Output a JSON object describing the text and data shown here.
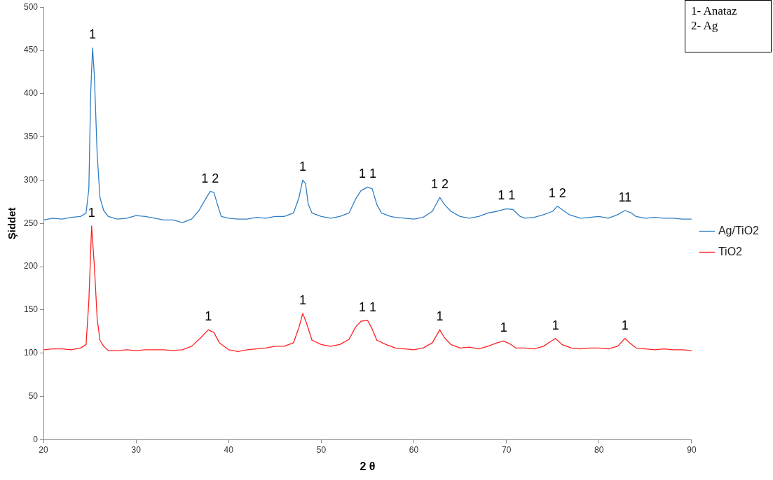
{
  "chart_data": {
    "type": "line",
    "xlabel": "2 θ",
    "ylabel": "Şiddet",
    "xlim": [
      20,
      90
    ],
    "xticks": [
      20,
      30,
      40,
      50,
      60,
      70,
      80,
      90
    ],
    "ylim": [
      0,
      500
    ],
    "yticks": [
      0,
      50,
      100,
      150,
      200,
      250,
      300,
      350,
      400,
      450,
      500
    ],
    "grid": false,
    "legend": "right",
    "marker": "none",
    "line_style": "solid",
    "series": [
      {
        "name": "Ag/TiO2",
        "color": "#2f7ec4",
        "x": [
          20,
          21,
          22,
          23,
          24,
          24.6,
          24.9,
          25.1,
          25.3,
          25.5,
          25.8,
          26.1,
          26.5,
          27,
          28,
          29,
          30,
          31,
          32,
          33,
          34,
          35,
          36,
          36.8,
          37.5,
          38,
          38.4,
          38.7,
          39.2,
          40,
          41,
          42,
          43,
          44,
          45,
          46,
          47,
          47.6,
          48,
          48.3,
          48.6,
          49,
          50,
          51,
          52,
          53,
          53.7,
          54.3,
          55,
          55.5,
          56,
          56.5,
          57.5,
          58,
          59,
          60,
          61,
          62,
          62.8,
          63.3,
          64,
          65,
          66,
          67,
          68,
          69,
          70,
          70.7,
          71.5,
          72,
          73,
          74,
          75,
          75.5,
          76,
          76.8,
          78,
          79,
          80,
          81,
          82,
          82.8,
          83.5,
          84,
          85,
          86,
          87,
          88,
          89,
          90
        ],
        "values": [
          254,
          256,
          255,
          257,
          258,
          262,
          290,
          400,
          453,
          420,
          330,
          280,
          265,
          258,
          255,
          256,
          259,
          258,
          256,
          254,
          254,
          251,
          255,
          265,
          278,
          287,
          286,
          275,
          258,
          256,
          255,
          255,
          257,
          256,
          258,
          258,
          262,
          280,
          300,
          296,
          272,
          262,
          258,
          256,
          258,
          262,
          278,
          288,
          292,
          290,
          272,
          262,
          258,
          257,
          256,
          255,
          257,
          264,
          280,
          272,
          264,
          258,
          256,
          258,
          262,
          264,
          267,
          266,
          258,
          256,
          257,
          260,
          264,
          270,
          266,
          260,
          256,
          257,
          258,
          256,
          260,
          265,
          262,
          258,
          256,
          257,
          256,
          256,
          255,
          255
        ]
      },
      {
        "name": "TiO2",
        "color": "#ff2020",
        "x": [
          20,
          21,
          22,
          23,
          24,
          24.6,
          24.9,
          25.2,
          25.5,
          25.8,
          26.1,
          26.5,
          27,
          28,
          29,
          30,
          31,
          32,
          33,
          34,
          35,
          36,
          37,
          37.8,
          38.4,
          39,
          40,
          41,
          42,
          43,
          44,
          45,
          46,
          47,
          47.6,
          48,
          48.4,
          49,
          50,
          51,
          52,
          53,
          53.7,
          54.3,
          55,
          55.5,
          56,
          57,
          58,
          59,
          60,
          61,
          62,
          62.8,
          63.3,
          64,
          65,
          66,
          67,
          68,
          69,
          69.7,
          70.5,
          71,
          72,
          73,
          74,
          74.7,
          75.3,
          76,
          77,
          78,
          79,
          80,
          81,
          82,
          82.8,
          83.3,
          84,
          85,
          86,
          87,
          88,
          89,
          90
        ],
        "values": [
          104,
          105,
          105,
          104,
          106,
          110,
          160,
          247,
          200,
          140,
          115,
          108,
          103,
          103,
          104,
          103,
          104,
          104,
          104,
          103,
          104,
          108,
          118,
          127,
          124,
          112,
          104,
          102,
          104,
          105,
          106,
          108,
          108,
          112,
          130,
          146,
          135,
          115,
          110,
          108,
          110,
          116,
          130,
          137,
          138,
          128,
          115,
          110,
          106,
          105,
          104,
          106,
          112,
          127,
          118,
          110,
          106,
          107,
          105,
          108,
          112,
          114,
          110,
          106,
          106,
          105,
          108,
          113,
          117,
          110,
          106,
          105,
          106,
          106,
          105,
          108,
          117,
          112,
          106,
          105,
          104,
          105,
          104,
          104,
          103
        ]
      }
    ],
    "annotations": [
      "1- Anataz",
      "2- Ag",
      {
        "text": "1",
        "x": 25.3,
        "y": 453
      },
      {
        "text": "1 2",
        "x": 38,
        "y": 287
      },
      {
        "text": "1",
        "x": 48,
        "y": 300
      },
      {
        "text": "1 1",
        "x": 55,
        "y": 292
      },
      {
        "text": "1 2",
        "x": 62.8,
        "y": 280
      },
      {
        "text": "1 1",
        "x": 70,
        "y": 267
      },
      {
        "text": "1 2",
        "x": 75.5,
        "y": 270
      },
      {
        "text": "11",
        "x": 82.8,
        "y": 265
      },
      {
        "text": "1",
        "x": 25.2,
        "y": 247
      },
      {
        "text": "1",
        "x": 37.8,
        "y": 127
      },
      {
        "text": "1",
        "x": 48,
        "y": 146
      },
      {
        "text": "1 1",
        "x": 55,
        "y": 138
      },
      {
        "text": "1",
        "x": 62.8,
        "y": 127
      },
      {
        "text": "1",
        "x": 69.7,
        "y": 114
      },
      {
        "text": "1",
        "x": 75.3,
        "y": 117
      },
      {
        "text": "1",
        "x": 82.8,
        "y": 117
      }
    ]
  }
}
